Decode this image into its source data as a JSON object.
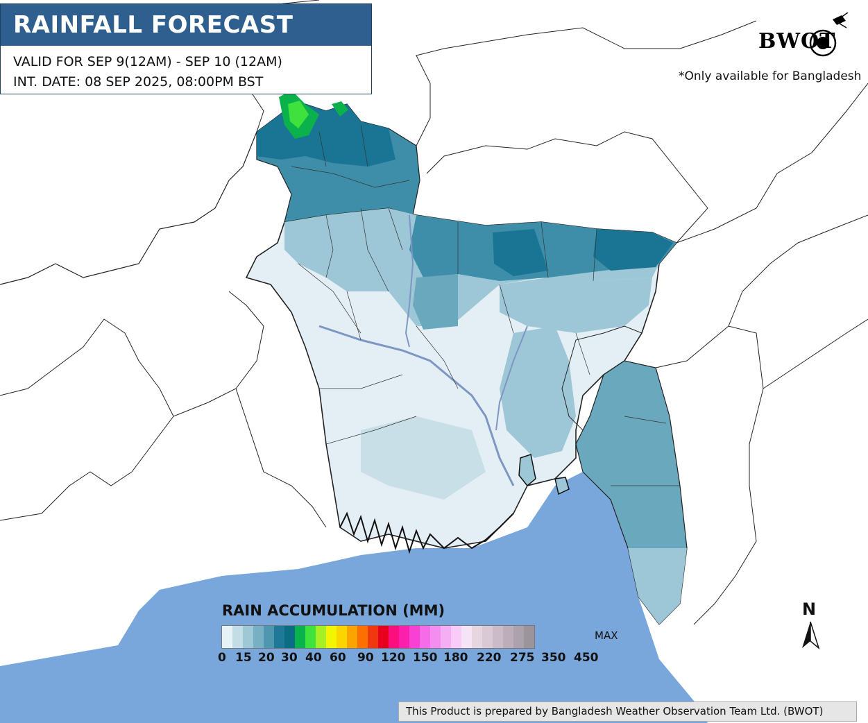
{
  "header": {
    "title": "RAINFALL FORECAST",
    "valid_line": "VALID FOR SEP 9(12AM) - SEP 10 (12AM)",
    "init_line": "INT. DATE: 08 SEP 2025, 08:00PM BST"
  },
  "logo": {
    "text": "BWOT"
  },
  "note": "*Only available for Bangladesh",
  "legend": {
    "title": "RAIN ACCUMULATION (MM)",
    "max_label": "MAX",
    "ticks": [
      "0",
      "15",
      "20",
      "30",
      "40",
      "60",
      "90",
      "120",
      "150",
      "180",
      "220",
      "275",
      "350",
      "450"
    ],
    "colors": [
      "#e7f2f7",
      "#c3dde7",
      "#9fc8d6",
      "#78b0c3",
      "#4e97ae",
      "#1f7896",
      "#0b6d83",
      "#0bb14a",
      "#3fe23c",
      "#a6ef25",
      "#f3f500",
      "#fbd500",
      "#fba400",
      "#fb7000",
      "#f0380e",
      "#e8001f",
      "#fb0f7c",
      "#fb1fae",
      "#f840d3",
      "#f66ce6",
      "#f38ef0",
      "#f5aef3",
      "#f8cbf8",
      "#f6e3f6",
      "#e6d6e0",
      "#d9c9d4",
      "#cbbbc8",
      "#bcadba",
      "#aba2ab",
      "#9b949b"
    ],
    "region_colors": {
      "very_light": "#e4eef5",
      "light": "#c9dfe8",
      "mid_light": "#9dc7d6",
      "mid": "#6aa9bd",
      "dark": "#3e8ea9",
      "darkest": "#1a7595",
      "green_light": "#3fe23c",
      "green": "#0bb14a",
      "sea": "#79a7db"
    }
  },
  "compass": {
    "label": "N"
  },
  "credit": "This Product is prepared by Bangladesh Weather Observation Team Ltd. (BWOT)"
}
